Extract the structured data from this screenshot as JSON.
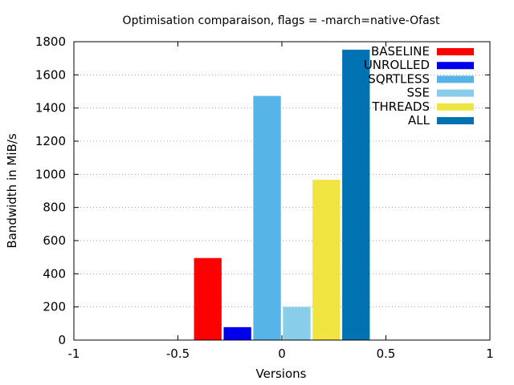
{
  "chart_data": {
    "type": "bar",
    "title": "Optimisation comparaison, flags = -march=native-Ofast",
    "xlabel": "Versions",
    "ylabel": "Bandwidth in MiB/s",
    "xlim": [
      -1,
      1
    ],
    "ylim": [
      0,
      1800
    ],
    "xticks": [
      "-1",
      "-0.5",
      "0",
      "0.5",
      "1"
    ],
    "yticks": [
      "0",
      "200",
      "400",
      "600",
      "800",
      "1000",
      "1200",
      "1400",
      "1600",
      "1800"
    ],
    "grid": "horizontal dotted",
    "legend_position": "top-right",
    "series": [
      {
        "name": "BASELINE",
        "value": 495,
        "color": "#ff0000"
      },
      {
        "name": "UNROLLED",
        "value": 78,
        "color": "#0000ee"
      },
      {
        "name": "SQRTLESS",
        "value": 1473,
        "color": "#56b4e9"
      },
      {
        "name": "SSE",
        "value": 200,
        "color": "#88ceea"
      },
      {
        "name": "THREADS",
        "value": 967,
        "color": "#f0e442"
      },
      {
        "name": "ALL",
        "value": 1752,
        "color": "#0072b2"
      }
    ]
  }
}
